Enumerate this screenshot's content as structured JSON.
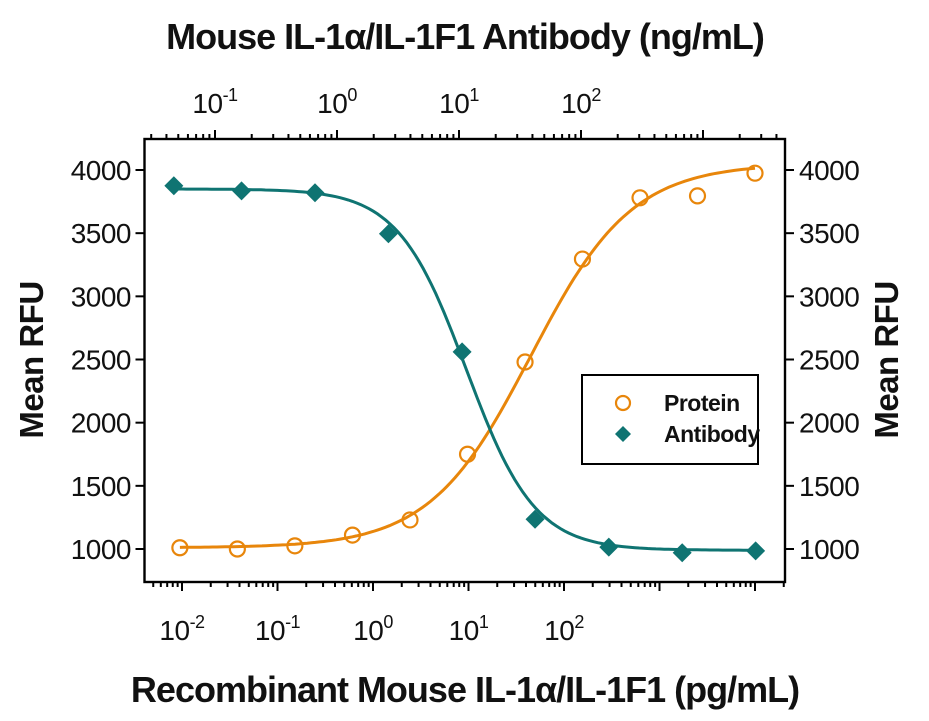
{
  "chart_data": {
    "type": "scatter",
    "title_top_axis": "Mouse IL-1α/IL-1F1 Antibody (ng/mL)",
    "title_bottom_axis": "Recombinant Mouse IL-1α/IL-1F1 (pg/mL)",
    "ylabel_left": "Mean RFU",
    "ylabel_right": "Mean RFU",
    "y_axis": {
      "min": 1000,
      "max": 4000,
      "ticks": [
        1000,
        1500,
        2000,
        2500,
        3000,
        3500,
        4000
      ]
    },
    "x_bottom_axis": {
      "scale": "log",
      "unit": "pg/mL",
      "labeled_decades": [
        -2,
        -1,
        0,
        1,
        2
      ],
      "tick_labels": [
        "10⁻²",
        "10⁻¹",
        "10⁰",
        "10¹",
        "10²"
      ]
    },
    "x_top_axis": {
      "scale": "log",
      "unit": "ng/mL",
      "labeled_decades": [
        -1,
        0,
        1,
        2
      ],
      "tick_labels": [
        "10⁻¹",
        "10⁰",
        "10¹",
        "10²"
      ]
    },
    "series": [
      {
        "name": "Protein",
        "axis": "bottom",
        "marker": "open-circle",
        "color": "#E8860B",
        "doses": [
          0.0095,
          0.038,
          0.152,
          0.61,
          2.44,
          9.77,
          39.1,
          156,
          625,
          2500,
          10000
        ],
        "mean_rfu": [
          1010,
          1000,
          1025,
          1110,
          1230,
          1750,
          2480,
          3295,
          3780,
          3795,
          3975
        ],
        "fit": {
          "type": "4PL",
          "direction": "up",
          "top": 4050,
          "bottom": 1010,
          "c": 45,
          "hill": 0.82
        }
      },
      {
        "name": "Antibody",
        "axis": "top",
        "marker": "filled-diamond",
        "color": "#0F7472",
        "doses": [
          0.046,
          0.165,
          0.66,
          2.64,
          10.6,
          42,
          169,
          675,
          2700
        ],
        "mean_rfu": [
          3875,
          3835,
          3820,
          3495,
          2560,
          1235,
          1015,
          970,
          985
        ],
        "fit": {
          "type": "4PL",
          "direction": "down",
          "top": 3850,
          "bottom": 990,
          "c": 11.5,
          "hill": 1.55
        }
      }
    ],
    "legend": {
      "items": [
        {
          "label": "Protein",
          "marker": "open-circle",
          "color": "#E8860B"
        },
        {
          "label": "Antibody",
          "marker": "filled-diamond",
          "color": "#0F7472"
        }
      ]
    }
  }
}
